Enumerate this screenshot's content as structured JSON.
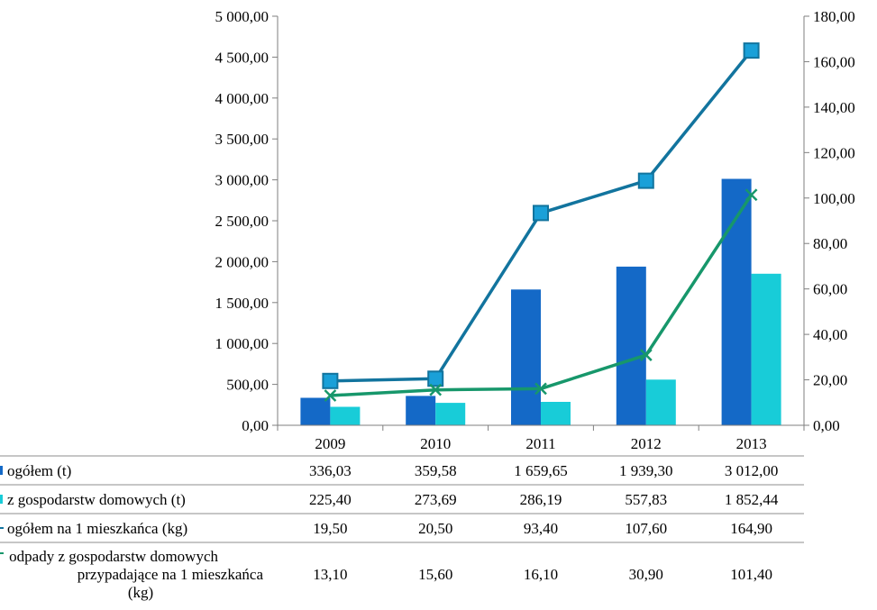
{
  "chart_data": {
    "type": "bar",
    "categories": [
      "2009",
      "2010",
      "2011",
      "2012",
      "2013"
    ],
    "y_left": {
      "min": 0,
      "max": 5000,
      "step": 500,
      "tick_labels": [
        "0,00",
        "500,00",
        "1 000,00",
        "1 500,00",
        "2 000,00",
        "2 500,00",
        "3 000,00",
        "3 500,00",
        "4 000,00",
        "4 500,00",
        "5 000,00"
      ]
    },
    "y_right": {
      "min": 0,
      "max": 180,
      "step": 20,
      "tick_labels": [
        "0,00",
        "20,00",
        "40,00",
        "60,00",
        "80,00",
        "100,00",
        "120,00",
        "140,00",
        "160,00",
        "180,00"
      ]
    },
    "grid": false,
    "series": [
      {
        "name": "ogółem (t)",
        "kind": "bar",
        "axis": "left",
        "color": "#1469c7",
        "values": [
          336.03,
          359.58,
          1659.65,
          1939.3,
          3012.0
        ],
        "labels": [
          "336,03",
          "359,58",
          "1 659,65",
          "1 939,30",
          "3 012,00"
        ]
      },
      {
        "name": "z gospodarstw domowych (t)",
        "kind": "bar",
        "axis": "left",
        "color": "#18ccd8",
        "values": [
          225.4,
          273.69,
          286.19,
          557.83,
          1852.44
        ],
        "labels": [
          "225,40",
          "273,69",
          "286,19",
          "557,83",
          "1 852,44"
        ]
      },
      {
        "name": "ogółem na 1 mieszkańca (kg)",
        "kind": "line",
        "axis": "right",
        "color": "#12749e",
        "marker_color": "#1aa0d8",
        "marker": "square",
        "values": [
          19.5,
          20.5,
          93.4,
          107.6,
          164.9
        ],
        "labels": [
          "19,50",
          "20,50",
          "93,40",
          "107,60",
          "164,90"
        ]
      },
      {
        "name_lines": [
          "odpady z gospodarstw domowych",
          "przypadające na 1 mieszkańca",
          "(kg)"
        ],
        "kind": "line",
        "axis": "right",
        "color": "#17976b",
        "marker": "x",
        "values": [
          13.1,
          15.6,
          16.1,
          30.9,
          101.4
        ],
        "labels": [
          "13,10",
          "15,60",
          "16,10",
          "30,90",
          "101,40"
        ]
      }
    ]
  }
}
